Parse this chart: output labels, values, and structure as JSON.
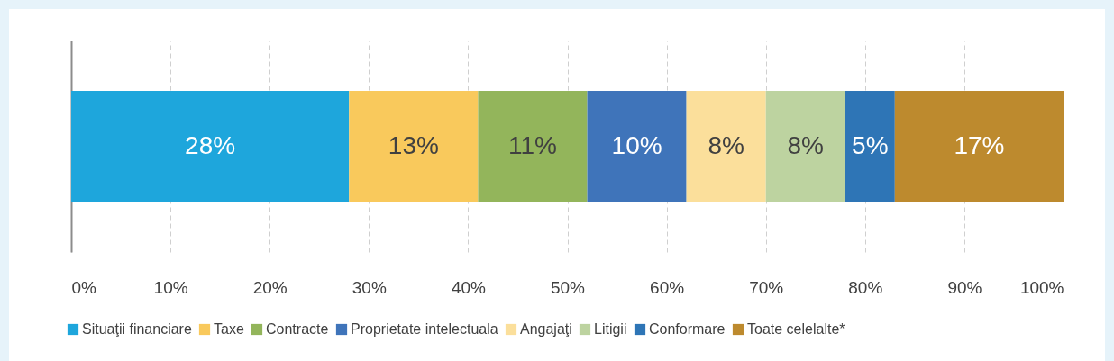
{
  "chart_data": {
    "type": "bar",
    "orientation": "horizontal",
    "stacked": true,
    "categories": [
      null
    ],
    "series": [
      {
        "name": "Situaţii financiare",
        "color": "#1ea6dc",
        "values": [
          28
        ],
        "value_labels": [
          "28%"
        ]
      },
      {
        "name": "Taxe",
        "color": "#f9c95c",
        "values": [
          13
        ],
        "value_labels": [
          "13%"
        ]
      },
      {
        "name": "Contracte",
        "color": "#93b55b",
        "values": [
          11
        ],
        "value_labels": [
          "11%"
        ]
      },
      {
        "name": "Proprietate intelectuala",
        "color": "#3f74ba",
        "values": [
          10
        ],
        "value_labels": [
          "10%"
        ]
      },
      {
        "name": "Angajaţi",
        "color": "#fbdf9b",
        "values": [
          8
        ],
        "value_labels": [
          "8%"
        ]
      },
      {
        "name": "Litigii",
        "color": "#bdd3a0",
        "values": [
          8
        ],
        "value_labels": [
          "8%"
        ]
      },
      {
        "name": "Conformare",
        "color": "#2e75b6",
        "values": [
          5
        ],
        "value_labels": [
          "5%"
        ]
      },
      {
        "name": "Toate celelalte*",
        "color": "#bd8a2e",
        "values": [
          17
        ],
        "value_labels": [
          "17%"
        ]
      }
    ],
    "xlim": [
      0,
      100
    ],
    "xticks": [
      {
        "value": 0,
        "label": "0%"
      },
      {
        "value": 10,
        "label": "10%"
      },
      {
        "value": 20,
        "label": "20%"
      },
      {
        "value": 30,
        "label": "30%"
      },
      {
        "value": 40,
        "label": "40%"
      },
      {
        "value": 50,
        "label": "50%"
      },
      {
        "value": 60,
        "label": "60%"
      },
      {
        "value": 70,
        "label": "70%"
      },
      {
        "value": 80,
        "label": "80%"
      },
      {
        "value": 90,
        "label": "90%"
      },
      {
        "value": 100,
        "label": "100%"
      }
    ],
    "grid": "x",
    "legend": "bottom",
    "tick_labels": "x"
  }
}
